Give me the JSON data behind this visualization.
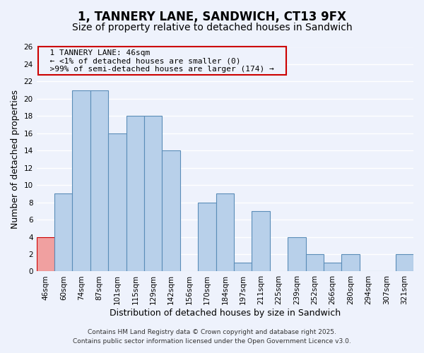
{
  "title": "1, TANNERY LANE, SANDWICH, CT13 9FX",
  "subtitle": "Size of property relative to detached houses in Sandwich",
  "xlabel": "Distribution of detached houses by size in Sandwich",
  "ylabel": "Number of detached properties",
  "bar_color": "#b8d0ea",
  "bar_edge_color": "#5b8db8",
  "highlight_bar_color": "#f0a0a0",
  "highlight_bar_edge_color": "#cc0000",
  "bins": [
    "46sqm",
    "60sqm",
    "74sqm",
    "87sqm",
    "101sqm",
    "115sqm",
    "129sqm",
    "142sqm",
    "156sqm",
    "170sqm",
    "184sqm",
    "197sqm",
    "211sqm",
    "225sqm",
    "239sqm",
    "252sqm",
    "266sqm",
    "280sqm",
    "294sqm",
    "307sqm",
    "321sqm"
  ],
  "values": [
    4,
    9,
    21,
    21,
    16,
    18,
    18,
    14,
    0,
    8,
    9,
    1,
    7,
    0,
    4,
    2,
    1,
    2,
    0,
    0,
    2
  ],
  "highlight_index": 0,
  "ylim": [
    0,
    26
  ],
  "yticks": [
    0,
    2,
    4,
    6,
    8,
    10,
    12,
    14,
    16,
    18,
    20,
    22,
    24,
    26
  ],
  "annotation_title": "1 TANNERY LANE: 46sqm",
  "annotation_line1": "← <1% of detached houses are smaller (0)",
  "annotation_line2": ">99% of semi-detached houses are larger (174) →",
  "footer1": "Contains HM Land Registry data © Crown copyright and database right 2025.",
  "footer2": "Contains public sector information licensed under the Open Government Licence v3.0.",
  "background_color": "#eef2fc",
  "grid_color": "#ffffff",
  "annotation_box_edge": "#cc0000",
  "title_fontsize": 12,
  "subtitle_fontsize": 10,
  "axis_label_fontsize": 9,
  "tick_fontsize": 7.5,
  "annotation_fontsize": 8,
  "footer_fontsize": 6.5
}
